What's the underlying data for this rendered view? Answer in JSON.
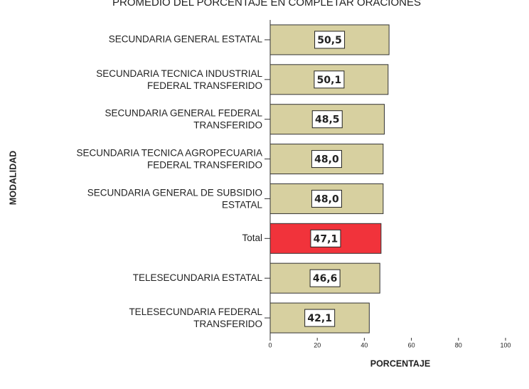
{
  "chart_data": {
    "type": "barh",
    "title": "PROMEDIO DEL PORCENTAJE EN COMPLETAR ORACIONES",
    "xlabel": "PORCENTAJE",
    "ylabel": "MODALIDAD",
    "categories": [
      "SECUNDARIA GENERAL ESTATAL",
      "SECUNDARIA TECNICA INDUSTRIAL\nFEDERAL TRANSFERIDO",
      "SECUNDARIA GENERAL FEDERAL\nTRANSFERIDO",
      "SECUNDARIA TECNICA AGROPECUARIA\nFEDERAL TRANSFERIDO",
      "SECUNDARIA GENERAL DE SUBSIDIO\nESTATAL",
      "Total",
      "TELESECUNDARIA ESTATAL",
      "TELESECUNDARIA FEDERAL\nTRANSFERIDO"
    ],
    "values": [
      50.5,
      50.1,
      48.5,
      48.0,
      48.0,
      47.1,
      46.6,
      42.1
    ],
    "value_labels": [
      "50,5",
      "50,1",
      "48,5",
      "48,0",
      "48,0",
      "47,1",
      "46,6",
      "42,1"
    ],
    "colors": [
      "#d7d0a0",
      "#d7d0a0",
      "#d7d0a0",
      "#d7d0a0",
      "#d7d0a0",
      "#f1333b",
      "#d7d0a0",
      "#d7d0a0"
    ],
    "xlim": [
      0,
      100
    ],
    "xticks": [
      0,
      20,
      40,
      60,
      80,
      100
    ]
  }
}
